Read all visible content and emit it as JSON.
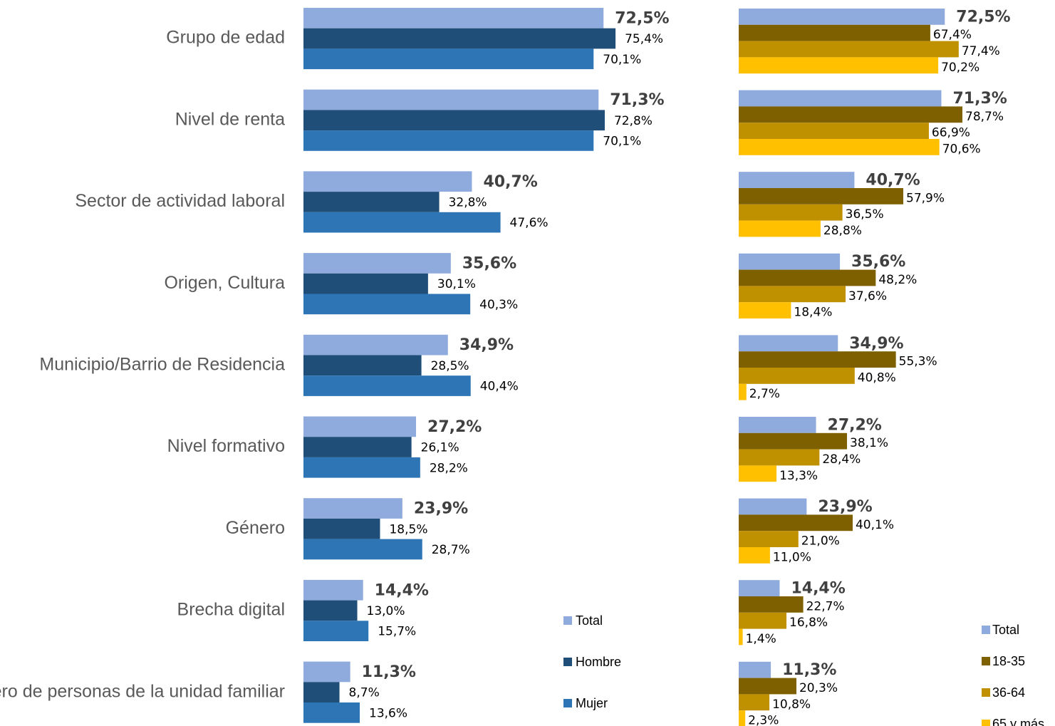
{
  "chart_data": [
    {
      "type": "bar",
      "orientation": "horizontal",
      "categories": [
        "Grupo de edad",
        "Nivel de renta",
        "Sector de actividad laboral",
        "Origen, Cultura",
        "Municipio/Barrio de Residencia",
        "Nivel formativo",
        "Género",
        "Brecha digital",
        "Número de personas de la unidad familiar"
      ],
      "series": [
        {
          "name": "Total",
          "color": "#8faadc",
          "values": [
            72.5,
            71.3,
            40.7,
            35.6,
            34.9,
            27.2,
            23.9,
            14.4,
            11.3
          ],
          "labels": [
            "72,5%",
            "71,3%",
            "40,7%",
            "35,6%",
            "34,9%",
            "27,2%",
            "23,9%",
            "14,4%",
            "11,3%"
          ]
        },
        {
          "name": "Hombre",
          "color": "#1f4e79",
          "values": [
            75.4,
            72.8,
            32.8,
            30.1,
            28.5,
            26.1,
            18.5,
            13.0,
            8.7
          ],
          "labels": [
            "75,4%",
            "72,8%",
            "32,8%",
            "30,1%",
            "28,5%",
            "26,1%",
            "18,5%",
            "13,0%",
            "8,7%"
          ]
        },
        {
          "name": "Mujer",
          "color": "#2e75b6",
          "values": [
            70.1,
            70.1,
            47.6,
            40.3,
            40.4,
            28.2,
            28.7,
            15.7,
            13.6
          ],
          "labels": [
            "70,1%",
            "70,1%",
            "47,6%",
            "40,3%",
            "40,4%",
            "28,2%",
            "28,7%",
            "15,7%",
            "13,6%"
          ]
        }
      ],
      "legend": "bottom-right"
    },
    {
      "type": "bar",
      "orientation": "horizontal",
      "categories": [
        "Grupo de edad",
        "Nivel de renta",
        "Sector de actividad laboral",
        "Origen, Cultura",
        "Municipio/Barrio de Residencia",
        "Nivel formativo",
        "Género",
        "Brecha digital",
        "Número de personas de la unidad familiar"
      ],
      "series": [
        {
          "name": "Total",
          "color": "#8faadc",
          "values": [
            72.5,
            71.3,
            40.7,
            35.6,
            34.9,
            27.2,
            23.9,
            14.4,
            11.3
          ],
          "labels": [
            "72,5%",
            "71,3%",
            "40,7%",
            "35,6%",
            "34,9%",
            "27,2%",
            "23,9%",
            "14,4%",
            "11,3%"
          ]
        },
        {
          "name": "18-35",
          "color": "#7f6000",
          "values": [
            67.4,
            78.7,
            57.9,
            48.2,
            55.3,
            38.1,
            40.1,
            22.7,
            20.3
          ],
          "labels": [
            "67,4%",
            "78,7%",
            "57,9%",
            "48,2%",
            "55,3%",
            "38,1%",
            "40,1%",
            "22,7%",
            "20,3%"
          ]
        },
        {
          "name": "36-64",
          "color": "#bf9000",
          "values": [
            77.4,
            66.9,
            36.5,
            37.6,
            40.8,
            28.4,
            21.0,
            16.8,
            10.8
          ],
          "labels": [
            "77,4%",
            "66,9%",
            "36,5%",
            "37,6%",
            "40,8%",
            "28,4%",
            "21,0%",
            "16,8%",
            "10,8%"
          ]
        },
        {
          "name": "65 y más",
          "color": "#ffc000",
          "values": [
            70.2,
            70.6,
            28.8,
            18.4,
            2.7,
            13.3,
            11.0,
            1.4,
            2.3
          ],
          "labels": [
            "70,2%",
            "70,6%",
            "28,8%",
            "18,4%",
            "2,7%",
            "13,3%",
            "11,0%",
            "1,4%",
            "2,3%"
          ]
        }
      ],
      "legend": "bottom-right"
    }
  ]
}
